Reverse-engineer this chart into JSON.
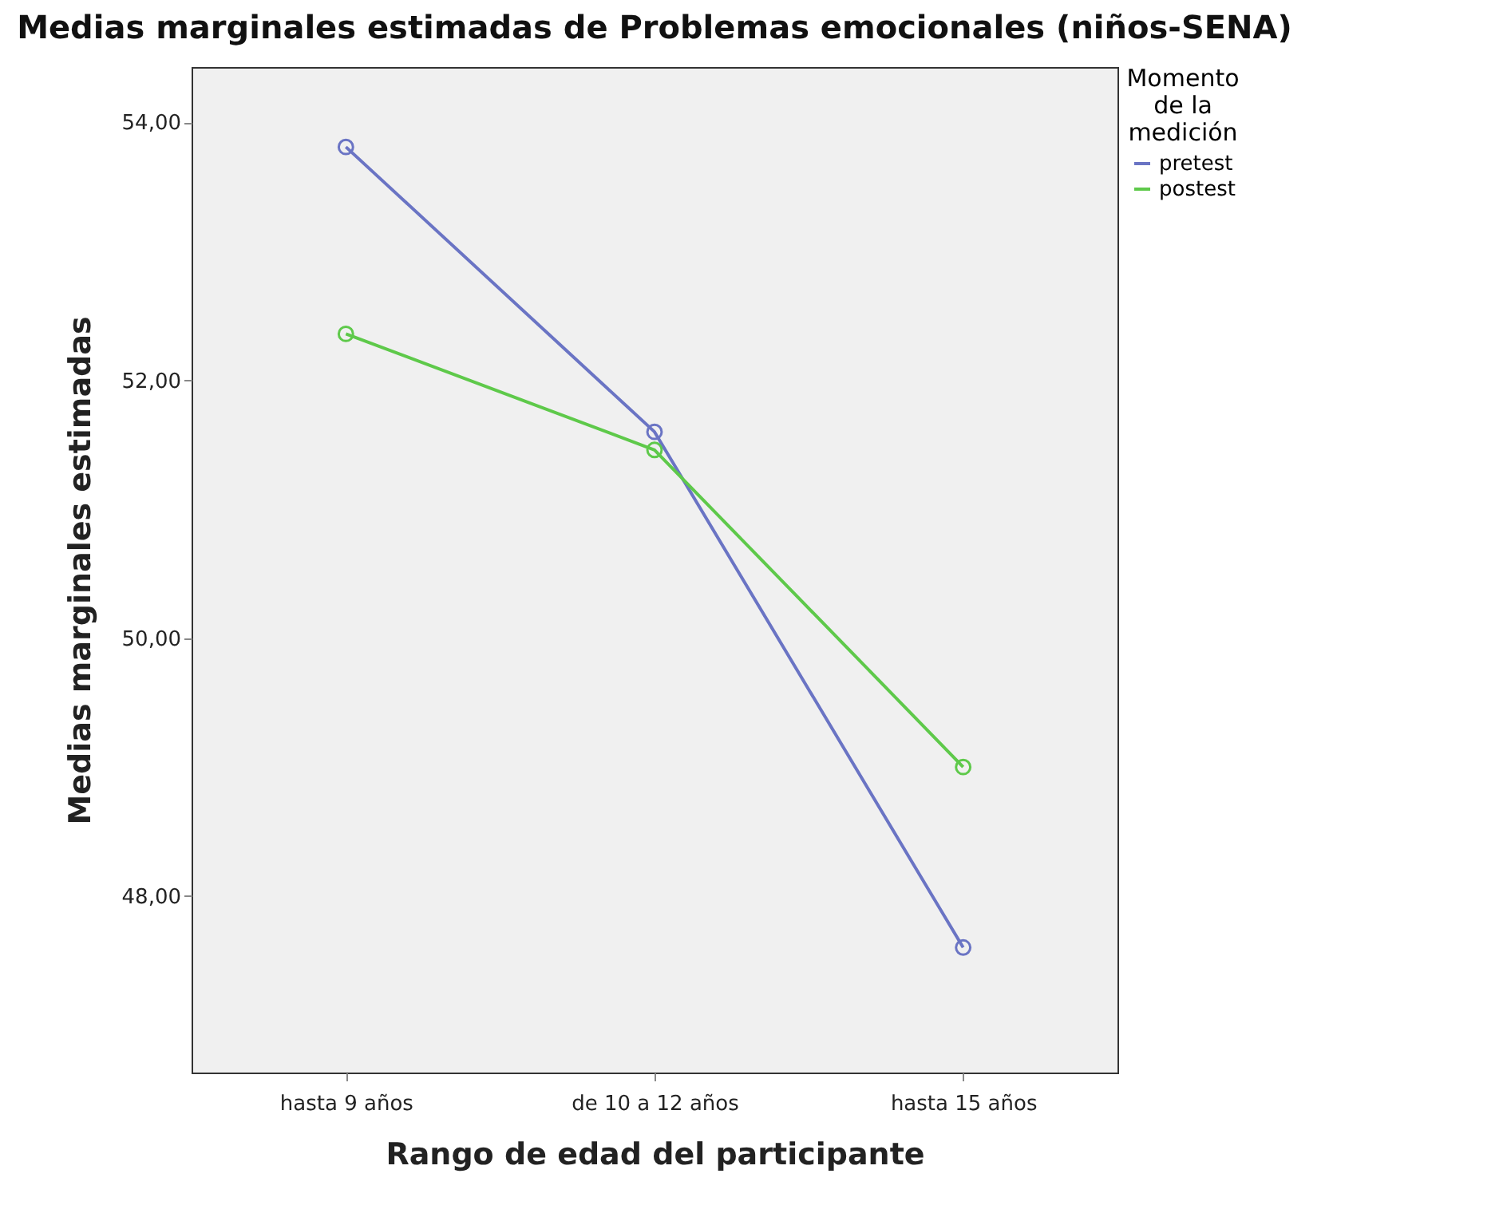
{
  "chart_data": {
    "type": "line",
    "title": "Medias marginales estimadas de Problemas emocionales (niños-SENA)",
    "xlabel": "Rango de edad del participante",
    "ylabel": "Medias marginales estimadas",
    "legend_title": "Momento de la medición",
    "categories": [
      "hasta 9 años",
      "de 10 a 12 años",
      "hasta 15 años"
    ],
    "series": [
      {
        "name": "pretest",
        "color": "#6a74c4",
        "values": [
          53.81,
          51.6,
          47.6
        ]
      },
      {
        "name": "postest",
        "color": "#5ec94a",
        "values": [
          52.36,
          51.46,
          49.0
        ]
      }
    ],
    "ylim": [
      46.63,
      54.43
    ],
    "yticks": [
      {
        "value": 48,
        "label": "48,00"
      },
      {
        "value": 50,
        "label": "50,00"
      },
      {
        "value": 52,
        "label": "52,00"
      },
      {
        "value": 54,
        "label": "54,00"
      }
    ],
    "marker": "circle",
    "line_style": "solid",
    "legend": "top right",
    "grid": false
  }
}
